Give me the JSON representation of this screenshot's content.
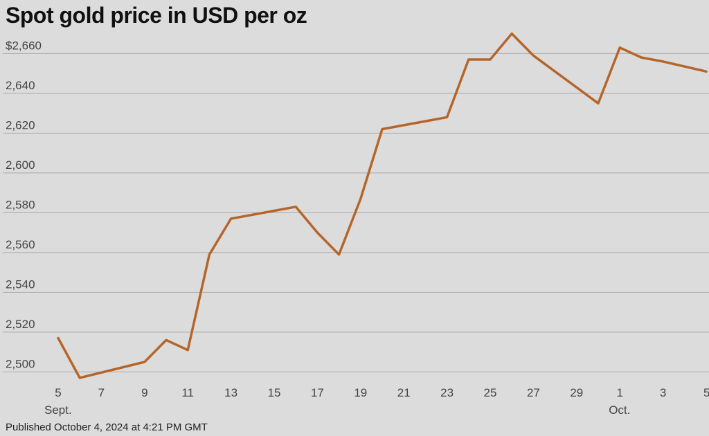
{
  "chart_data": {
    "type": "line",
    "title": "Spot gold price in USD per oz",
    "xlabel": "",
    "ylabel": "",
    "grid": true,
    "ylim": [
      2497,
      2673
    ],
    "xlim_days": [
      5,
      35
    ],
    "y_ticks": [
      2500,
      2520,
      2540,
      2560,
      2580,
      2600,
      2620,
      2640,
      2660
    ],
    "y_tick_labels": [
      "2,500",
      "2,520",
      "2,540",
      "2,560",
      "2,580",
      "2,600",
      "2,620",
      "2,640",
      "$2,660"
    ],
    "x_ticks": [
      {
        "day": 5,
        "label": "5",
        "sub": "Sept."
      },
      {
        "day": 7,
        "label": "7"
      },
      {
        "day": 9,
        "label": "9"
      },
      {
        "day": 11,
        "label": "11"
      },
      {
        "day": 13,
        "label": "13"
      },
      {
        "day": 15,
        "label": "15"
      },
      {
        "day": 17,
        "label": "17"
      },
      {
        "day": 19,
        "label": "19"
      },
      {
        "day": 21,
        "label": "21"
      },
      {
        "day": 23,
        "label": "23"
      },
      {
        "day": 25,
        "label": "25"
      },
      {
        "day": 27,
        "label": "27"
      },
      {
        "day": 29,
        "label": "29"
      },
      {
        "day": 31,
        "label": "1",
        "sub": "Oct."
      },
      {
        "day": 33,
        "label": "3"
      },
      {
        "day": 35,
        "label": "5"
      }
    ],
    "series": [
      {
        "color": "#b5652a",
        "x": [
          5,
          6,
          9,
          10,
          11,
          12,
          13,
          16,
          17,
          18,
          19,
          20,
          23,
          24,
          25,
          26,
          27,
          30,
          31,
          32,
          33,
          35
        ],
        "y": [
          2517,
          2497,
          2505,
          2516,
          2511,
          2559,
          2577,
          2583,
          2570,
          2559,
          2587,
          2622,
          2628,
          2657,
          2657,
          2670,
          2659,
          2635,
          2663,
          2658,
          2656,
          2651
        ]
      }
    ]
  },
  "footer": "Published October 4, 2024 at 4:21 PM GMT"
}
